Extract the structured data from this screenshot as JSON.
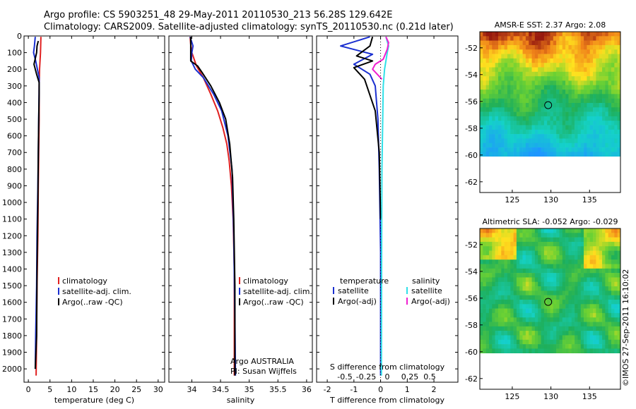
{
  "header": {
    "line1": "Argo profile: CS 5903251_48 29-May-2011 20110530_213 56.28S 129.642E",
    "line2": "Climatology: CARS2009. Satellite-adjusted climatology: synTS_20110530.nc (0.21d later)"
  },
  "colors": {
    "climatology": "#e02020",
    "satellite": "#1a2fd0",
    "argo": "#000000",
    "sal_satellite": "#30e0e8",
    "sal_argo": "#f020d0"
  },
  "chart_data": [
    {
      "type": "line",
      "title": "",
      "xlabel": "temperature (deg C)",
      "ylabel": "",
      "xlim": [
        -1,
        31.5
      ],
      "ylim": [
        2080,
        0
      ],
      "xticks": [
        "0",
        "5",
        "10",
        "15",
        "20",
        "25",
        "30"
      ],
      "xtick_values": [
        0,
        5,
        10,
        15,
        20,
        25,
        30
      ],
      "yticks": [
        "0",
        "100",
        "200",
        "300",
        "400",
        "500",
        "600",
        "700",
        "800",
        "900",
        "1000",
        "1100",
        "1200",
        "1300",
        "1400",
        "1500",
        "1600",
        "1700",
        "1800",
        "1900",
        "2000"
      ],
      "ytick_values": [
        0,
        100,
        200,
        300,
        400,
        500,
        600,
        700,
        800,
        900,
        1000,
        1100,
        1200,
        1300,
        1400,
        1500,
        1600,
        1700,
        1800,
        1900,
        2000
      ],
      "legend": [
        "climatology",
        "satellite-adj. clim.",
        "Argo(..raw -QC)"
      ],
      "series": [
        {
          "name": "climatology",
          "color": "#e02020",
          "x": [
            2.9,
            2.8,
            2.6,
            2.5,
            2.5,
            2.4,
            2.3,
            2.2,
            2.0,
            1.9,
            1.8
          ],
          "y": [
            5,
            100,
            200,
            300,
            500,
            700,
            900,
            1200,
            1500,
            1800,
            2040
          ]
        },
        {
          "name": "satellite-adj. clim.",
          "color": "#1a2fd0",
          "x": [
            1.6,
            1.4,
            1.2,
            1.7,
            2.5,
            2.5,
            2.4,
            2.3,
            2.2,
            2.0,
            1.9,
            1.7,
            1.6
          ],
          "y": [
            5,
            60,
            100,
            150,
            250,
            300,
            500,
            700,
            900,
            1200,
            1500,
            1800,
            2000
          ]
        },
        {
          "name": "Argo(..raw -QC)",
          "color": "#000000",
          "x": [
            2.3,
            2.0,
            1.9,
            1.3,
            1.9,
            2.5,
            2.5,
            2.4,
            2.3,
            2.2,
            2.0,
            1.9,
            1.6
          ],
          "y": [
            30,
            60,
            100,
            170,
            230,
            280,
            350,
            500,
            700,
            1000,
            1400,
            1800,
            2000
          ]
        }
      ]
    },
    {
      "type": "line",
      "title": "",
      "xlabel": "salinity",
      "ylabel": "",
      "xlim": [
        33.6,
        36.1
      ],
      "ylim": [
        2080,
        0
      ],
      "xticks": [
        "34",
        "34.5",
        "35",
        "35.5",
        "36"
      ],
      "xtick_values": [
        34,
        34.5,
        35,
        35.5,
        36
      ],
      "legend": [
        "climatology",
        "satellite-adj. clim.",
        "Argo(..raw -QC)"
      ],
      "annotation_lines": [
        "Argo AUSTRALIA",
        "PI: Susan Wijffels"
      ],
      "series": [
        {
          "name": "climatology",
          "color": "#e02020",
          "x": [
            33.97,
            33.98,
            34.0,
            34.08,
            34.2,
            34.33,
            34.45,
            34.54,
            34.61,
            34.65,
            34.69,
            34.72,
            34.74,
            34.74
          ],
          "y": [
            5,
            50,
            100,
            180,
            250,
            350,
            450,
            550,
            650,
            750,
            900,
            1100,
            1400,
            2040
          ]
        },
        {
          "name": "satellite-adj. clim.",
          "color": "#1a2fd0",
          "x": [
            33.97,
            34.02,
            34.0,
            33.99,
            34.06,
            34.2,
            34.38,
            34.52,
            34.63,
            34.7,
            34.73,
            34.75,
            34.76
          ],
          "y": [
            5,
            60,
            100,
            150,
            200,
            250,
            350,
            450,
            600,
            800,
            1200,
            1700,
            2040
          ]
        },
        {
          "name": "Argo(..raw -QC)",
          "color": "#000000",
          "x": [
            33.98,
            33.98,
            33.98,
            34.1,
            34.18,
            34.33,
            34.48,
            34.59,
            34.66,
            34.71,
            34.73,
            34.75,
            34.75
          ],
          "y": [
            5,
            100,
            150,
            180,
            220,
            300,
            400,
            500,
            650,
            850,
            1100,
            1500,
            2040
          ]
        }
      ]
    },
    {
      "type": "line",
      "title": "",
      "xlabel": "T difference from climatology",
      "xlabel2": "S difference from climatology",
      "xlim": [
        -2.4,
        2.9
      ],
      "ylim": [
        2080,
        0
      ],
      "xticks": [
        "-2",
        "-1",
        "0",
        "1",
        "2"
      ],
      "xtick_values": [
        -2,
        -1,
        0,
        1,
        2
      ],
      "xticks2": [
        "-0.5",
        "-0.25",
        "0",
        "0.25",
        "0.5"
      ],
      "legend_headings": [
        "temperature",
        "salinity"
      ],
      "legend": [
        "satellite",
        "Argo(-adj)",
        "satellite",
        "Argo(-adj)"
      ],
      "series": [
        {
          "name": "temperature satellite",
          "color": "#1a2fd0",
          "x": [
            -0.4,
            -1.5,
            -0.3,
            -1.0,
            -0.4,
            -0.2,
            -0.1,
            -0.05,
            0.0,
            0.0
          ],
          "y": [
            5,
            60,
            110,
            170,
            230,
            300,
            500,
            800,
            1300,
            2040
          ]
        },
        {
          "name": "temperature Argo(-adj)",
          "color": "#000000",
          "x": [
            -0.3,
            -0.4,
            -0.9,
            -0.3,
            -1.0,
            -0.6,
            -0.2,
            -0.05,
            0.0
          ],
          "y": [
            5,
            60,
            120,
            150,
            190,
            260,
            450,
            700,
            1100
          ]
        },
        {
          "name": "salinity satellite",
          "color": "#30e0e8",
          "x": [
            0.2,
            0.3,
            0.25,
            0.15,
            0.1,
            0.08,
            0.05,
            0.04,
            0.03
          ],
          "y": [
            5,
            60,
            100,
            200,
            300,
            500,
            800,
            1200,
            2040
          ]
        },
        {
          "name": "salinity Argo(-adj)",
          "color": "#f020d0",
          "x": [
            0.2,
            0.3,
            0.25,
            0.1,
            -0.2,
            -0.3,
            0.05
          ],
          "y": [
            5,
            40,
            80,
            140,
            170,
            200,
            260
          ]
        }
      ]
    },
    {
      "type": "heatmap",
      "title": "AMSR-E SST: 2.37  Argo: 2.08",
      "xticks": [
        "125",
        "130",
        "135"
      ],
      "xtick_values": [
        125,
        130,
        135
      ],
      "yticks": [
        "-52",
        "-54",
        "-56",
        "-58",
        "-60",
        "-62"
      ],
      "ytick_values": [
        -52,
        -54,
        -56,
        -58,
        -60,
        -62
      ],
      "xlim": [
        120.8,
        139
      ],
      "ylim": [
        -62.8,
        -50.8
      ],
      "data_extent_lat": [
        -60.1,
        -50.8
      ],
      "marker": {
        "lon": 129.642,
        "lat": -56.28
      }
    },
    {
      "type": "heatmap",
      "title": "Altimetric SLA: -0.052  Argo: -0.029",
      "xticks": [
        "125",
        "130",
        "135"
      ],
      "xtick_values": [
        125,
        130,
        135
      ],
      "yticks": [
        "-52",
        "-54",
        "-56",
        "-58",
        "-60",
        "-62"
      ],
      "ytick_values": [
        -52,
        -54,
        -56,
        -58,
        -60,
        -62
      ],
      "xlim": [
        120.8,
        139
      ],
      "ylim": [
        -62.8,
        -50.8
      ],
      "data_extent_lat": [
        -60.1,
        -50.8
      ],
      "marker": {
        "lon": 129.642,
        "lat": -56.28
      }
    }
  ],
  "footer": {
    "stamp": "©IMOS 27-Sep-2011 16:10:02"
  }
}
